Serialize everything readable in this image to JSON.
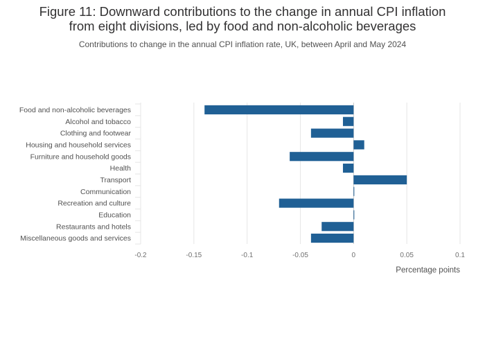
{
  "header": {
    "title_line1": "Figure 11: Downward contributions to the change in annual CPI inflation",
    "title_line2": "from eight divisions, led by food and non-alcoholic beverages",
    "subtitle": "Contributions to change in the annual CPI inflation rate, UK, between April and May 2024"
  },
  "colors": {
    "bar": "#206095",
    "grid": "#e6e6e6",
    "zero_line": "#c8c8c8"
  },
  "chart_data": {
    "type": "bar",
    "orientation": "horizontal",
    "title": "Figure 11: Downward contributions to the change in annual CPI inflation from eight divisions, led by food and non-alcoholic beverages",
    "subtitle": "Contributions to change in the annual CPI inflation rate, UK, between April and May 2024",
    "xlabel": "Percentage points",
    "ylabel": "",
    "xlim": [
      -0.2,
      0.1
    ],
    "xticks": [
      -0.2,
      -0.15,
      -0.1,
      -0.05,
      0,
      0.05,
      0.1
    ],
    "xtick_labels": [
      "-0.2",
      "-0.15",
      "-0.1",
      "-0.05",
      "0",
      "0.05",
      "0.1"
    ],
    "grid": true,
    "legend": "none",
    "categories": [
      "Food and non-alcoholic beverages",
      "Alcohol and tobacco",
      "Clothing and footwear",
      "Housing and household services",
      "Furniture and household goods",
      "Health",
      "Transport",
      "Communication",
      "Recreation and culture",
      "Education",
      "Restaurants and hotels",
      "Miscellaneous goods and services"
    ],
    "values": [
      -0.14,
      -0.01,
      -0.04,
      0.01,
      -0.06,
      -0.01,
      0.05,
      0.0,
      -0.07,
      0.0,
      -0.03,
      -0.04
    ]
  }
}
